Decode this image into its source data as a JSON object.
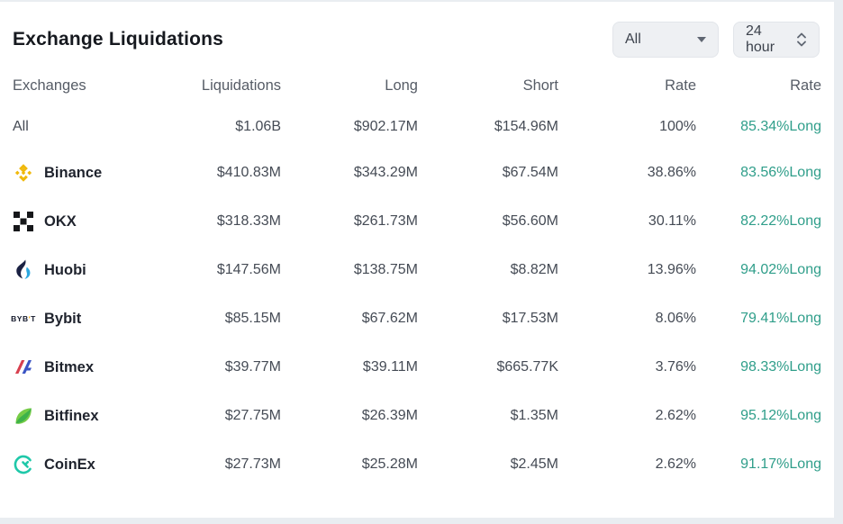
{
  "header": {
    "title": "Exchange Liquidations",
    "filters": {
      "symbol": {
        "value": "All"
      },
      "timeframe": {
        "value": "24 hour"
      }
    }
  },
  "table": {
    "columns": [
      "Exchanges",
      "Liquidations",
      "Long",
      "Short",
      "Rate",
      "Rate"
    ],
    "rows": [
      {
        "exchange": "All",
        "icon": "",
        "liquidations": "$1.06B",
        "long": "$902.17M",
        "short": "$154.96M",
        "rate": "100%",
        "long_rate": "85.34%Long"
      },
      {
        "exchange": "Binance",
        "icon": "binance-icon",
        "liquidations": "$410.83M",
        "long": "$343.29M",
        "short": "$67.54M",
        "rate": "38.86%",
        "long_rate": "83.56%Long"
      },
      {
        "exchange": "OKX",
        "icon": "okx-icon",
        "liquidations": "$318.33M",
        "long": "$261.73M",
        "short": "$56.60M",
        "rate": "30.11%",
        "long_rate": "82.22%Long"
      },
      {
        "exchange": "Huobi",
        "icon": "huobi-icon",
        "liquidations": "$147.56M",
        "long": "$138.75M",
        "short": "$8.82M",
        "rate": "13.96%",
        "long_rate": "94.02%Long"
      },
      {
        "exchange": "Bybit",
        "icon": "bybit-icon",
        "liquidations": "$85.15M",
        "long": "$67.62M",
        "short": "$17.53M",
        "rate": "8.06%",
        "long_rate": "79.41%Long"
      },
      {
        "exchange": "Bitmex",
        "icon": "bitmex-icon",
        "liquidations": "$39.77M",
        "long": "$39.11M",
        "short": "$665.77K",
        "rate": "3.76%",
        "long_rate": "98.33%Long"
      },
      {
        "exchange": "Bitfinex",
        "icon": "bitfinex-icon",
        "liquidations": "$27.75M",
        "long": "$26.39M",
        "short": "$1.35M",
        "rate": "2.62%",
        "long_rate": "95.12%Long"
      },
      {
        "exchange": "CoinEx",
        "icon": "coinex-icon",
        "liquidations": "$27.73M",
        "long": "$25.28M",
        "short": "$2.45M",
        "rate": "2.62%",
        "long_rate": "91.17%Long"
      }
    ]
  },
  "colors": {
    "long_rate_green": "#2f9e8a",
    "binance_gold": "#f0b90b",
    "bybit_orange": "#f7a600",
    "coinex_teal": "#1fc8a9",
    "page_background": "#e9edf1"
  }
}
